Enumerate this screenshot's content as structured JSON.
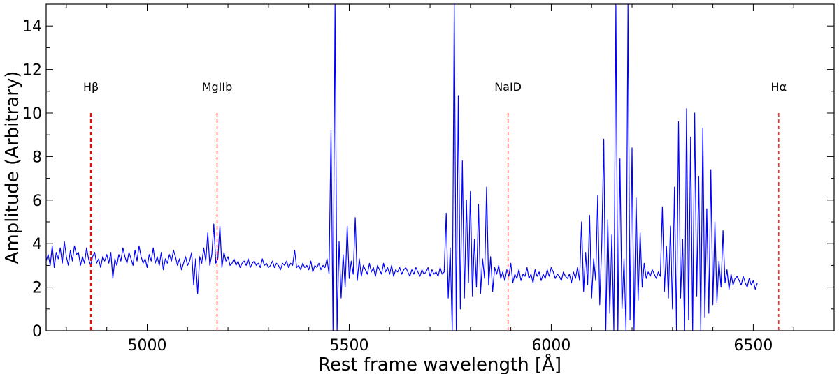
{
  "chart_data": {
    "type": "line",
    "title": "",
    "xlabel": "Rest frame wavelength [Å]",
    "ylabel": "Amplitude (Arbitrary)",
    "xlim": [
      4750,
      6700
    ],
    "ylim": [
      0,
      15
    ],
    "x_ticks": [
      5000,
      5500,
      6000,
      6500
    ],
    "x_tick_labels": [
      "5000",
      "5500",
      "6000",
      "6500"
    ],
    "y_ticks": [
      0,
      2,
      4,
      6,
      8,
      10,
      12,
      14
    ],
    "y_tick_labels": [
      "0",
      "2",
      "4",
      "6",
      "8",
      "10",
      "12",
      "14"
    ],
    "grid": false,
    "series": [
      {
        "color": "#0000ff",
        "step": 5,
        "x_start": 4750,
        "y": [
          3.2,
          3.5,
          3.0,
          3.9,
          2.9,
          3.6,
          3.3,
          3.8,
          3.1,
          4.1,
          3.4,
          3.0,
          3.7,
          3.2,
          3.9,
          3.5,
          3.6,
          3.0,
          3.4,
          3.1,
          3.8,
          3.3,
          3.0,
          3.4,
          3.6,
          3.1,
          3.3,
          2.9,
          3.4,
          3.2,
          3.5,
          3.1,
          3.6,
          2.4,
          3.3,
          3.0,
          3.5,
          3.2,
          3.8,
          3.4,
          3.1,
          3.6,
          3.3,
          3.0,
          3.7,
          3.2,
          3.9,
          3.4,
          3.1,
          3.3,
          2.9,
          3.5,
          3.2,
          3.8,
          3.1,
          3.4,
          3.0,
          3.6,
          2.8,
          3.3,
          3.1,
          3.5,
          3.2,
          3.7,
          3.4,
          3.0,
          3.3,
          2.8,
          3.1,
          3.4,
          3.0,
          3.2,
          3.6,
          2.1,
          3.3,
          1.7,
          3.4,
          3.1,
          3.8,
          3.2,
          4.5,
          3.0,
          3.5,
          4.9,
          3.1,
          3.3,
          4.8,
          2.9,
          3.6,
          3.2,
          3.4,
          3.0,
          3.1,
          3.3,
          3.0,
          3.2,
          2.9,
          3.1,
          3.2,
          3.0,
          3.3,
          2.9,
          3.1,
          3.2,
          3.0,
          3.1,
          2.9,
          3.3,
          3.0,
          3.1,
          2.9,
          3.0,
          3.2,
          2.9,
          3.1,
          3.0,
          2.8,
          3.1,
          3.0,
          3.2,
          2.9,
          3.1,
          3.0,
          3.7,
          2.9,
          3.0,
          2.8,
          3.1,
          2.9,
          3.0,
          2.8,
          3.2,
          2.7,
          3.0,
          2.9,
          3.1,
          2.8,
          3.0,
          2.9,
          3.3,
          2.6,
          9.2,
          0.0,
          15.0,
          0.0,
          4.1,
          1.5,
          3.5,
          2.0,
          4.8,
          2.4,
          3.2,
          2.6,
          5.2,
          2.3,
          3.3,
          2.5,
          3.0,
          2.8,
          2.6,
          3.1,
          2.7,
          2.9,
          2.5,
          3.0,
          2.8,
          2.6,
          3.1,
          2.7,
          2.9,
          2.6,
          3.0,
          2.5,
          2.8,
          2.7,
          2.9,
          2.6,
          2.8,
          2.9,
          2.7,
          2.5,
          2.8,
          2.6,
          2.9,
          2.7,
          2.5,
          2.8,
          2.6,
          2.7,
          2.9,
          2.5,
          2.8,
          2.6,
          2.7,
          2.5,
          2.9,
          2.6,
          2.7,
          5.4,
          1.5,
          3.8,
          0.0,
          15.0,
          0.0,
          10.8,
          1.0,
          7.8,
          1.5,
          6.0,
          2.2,
          6.4,
          1.6,
          4.2,
          2.0,
          5.8,
          1.7,
          3.3,
          2.4,
          6.6,
          2.1,
          3.4,
          1.8,
          2.9,
          2.6,
          3.0,
          2.4,
          2.7,
          2.3,
          2.8,
          2.5,
          3.1,
          2.2,
          2.6,
          2.4,
          2.8,
          2.3,
          2.6,
          2.5,
          2.9,
          2.4,
          2.6,
          2.2,
          2.8,
          2.5,
          2.7,
          2.3,
          2.6,
          2.4,
          2.8,
          2.5,
          2.9,
          2.7,
          2.4,
          2.6,
          2.5,
          2.3,
          2.7,
          2.5,
          2.4,
          2.6,
          2.2,
          2.7,
          2.4,
          2.9,
          2.3,
          5.0,
          1.8,
          3.6,
          2.1,
          5.3,
          1.5,
          3.3,
          2.3,
          6.2,
          1.2,
          4.0,
          8.8,
          0.0,
          5.1,
          0.8,
          4.4,
          0.0,
          15.0,
          0.0,
          7.9,
          1.0,
          3.3,
          0.0,
          15.0,
          0.5,
          8.4,
          0.0,
          6.1,
          1.4,
          4.5,
          2.0,
          3.1,
          2.4,
          2.7,
          2.5,
          2.8,
          2.6,
          2.4,
          2.7,
          2.5,
          5.7,
          1.8,
          3.9,
          1.5,
          4.8,
          1.0,
          6.6,
          0.0,
          9.6,
          1.5,
          4.2,
          0.0,
          10.2,
          0.5,
          8.9,
          0.0,
          10.0,
          1.6,
          7.1,
          0.0,
          9.3,
          0.6,
          5.6,
          0.8,
          7.4,
          1.2,
          5.0,
          1.3,
          3.2,
          2.0,
          4.6,
          2.2,
          2.8,
          1.9,
          2.6,
          2.1,
          2.4,
          2.5,
          2.3,
          2.1,
          2.5,
          2.2,
          2.0,
          2.4,
          2.1,
          2.3,
          1.9,
          2.2
        ]
      }
    ],
    "annotations": [
      {
        "label": "Hβ",
        "x": 4861,
        "y_top": 10.0,
        "dash_width": 2.5
      },
      {
        "label": "MgIIb",
        "x": 5173,
        "y_top": 10.0,
        "dash_width": 1.3
      },
      {
        "label": "NaID",
        "x": 5893,
        "y_top": 10.0,
        "dash_width": 1.3
      },
      {
        "label": "Hα",
        "x": 6563,
        "y_top": 10.0,
        "dash_width": 1.3
      }
    ],
    "annotation_color": "#ff0000"
  }
}
